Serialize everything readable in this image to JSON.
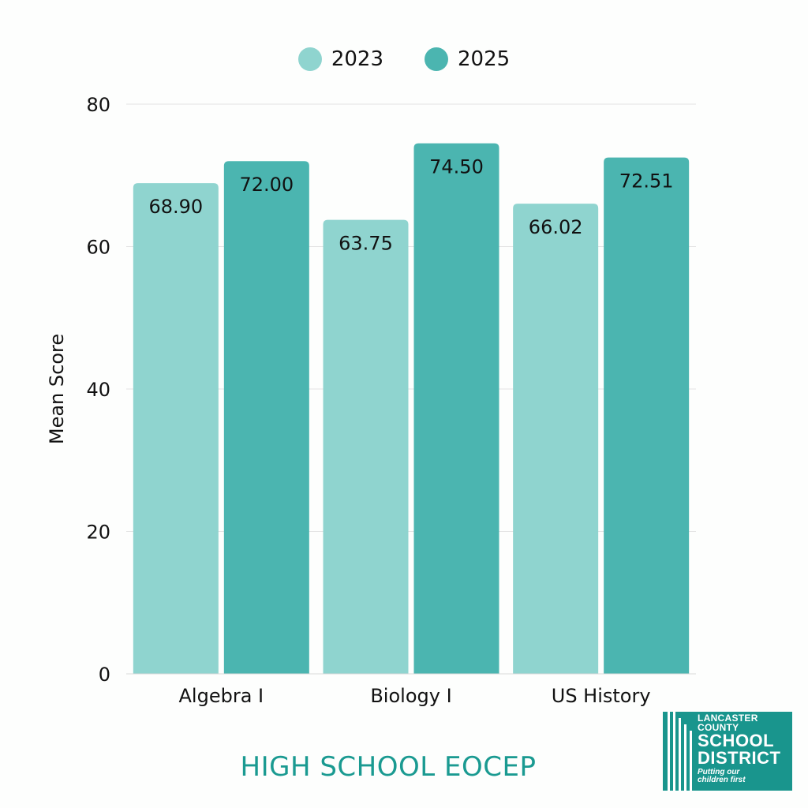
{
  "chart_data": {
    "type": "bar",
    "categories": [
      "Algebra I",
      "Biology I",
      "US History"
    ],
    "series": [
      {
        "name": "2023",
        "values": [
          68.9,
          63.75,
          66.02
        ],
        "labels": [
          "68.90",
          "63.75",
          "66.02"
        ],
        "color": "#8fd4cf"
      },
      {
        "name": "2025",
        "values": [
          72.0,
          74.5,
          72.51
        ],
        "labels": [
          "72.00",
          "74.50",
          "72.51"
        ],
        "color": "#4bb5b0"
      }
    ],
    "ylabel": "Mean Score",
    "xlabel": "",
    "ylim": [
      0,
      80
    ],
    "yticks": [
      0,
      20,
      40,
      60,
      80
    ],
    "grid": true,
    "legend_position": "top-center",
    "title": "HIGH SCHOOL EOCEP"
  },
  "logo": {
    "line1": "LANCASTER",
    "line2": "COUNTY",
    "line3": "SCHOOL",
    "line4": "DISTRICT",
    "tagline1": "Putting our",
    "tagline2": "children first"
  },
  "colors": {
    "accent": "#1a9a91",
    "grid": "#e3e3e3",
    "logo_bg": "#19958d"
  }
}
